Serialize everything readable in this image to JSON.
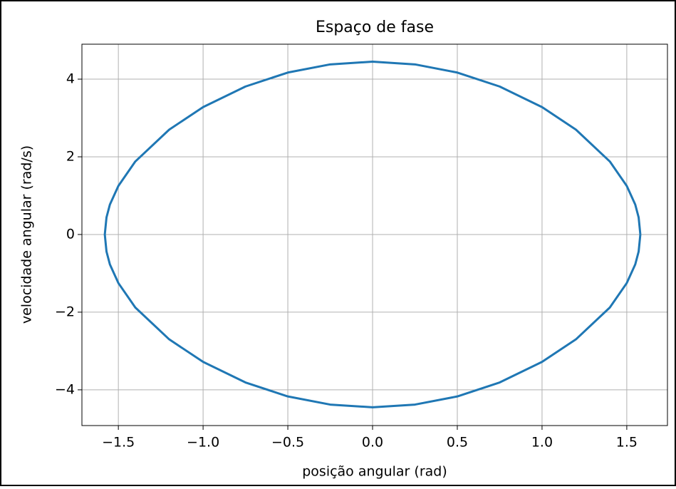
{
  "chart_data": {
    "type": "line",
    "title": "Espaço de fase",
    "xlabel": "posição angular (rad)",
    "ylabel": "velocidade angular (rad/s)",
    "series": [
      {
        "color": "#1f77b4",
        "x": [
          1.58,
          1.57,
          1.55,
          1.5,
          1.4,
          1.2,
          1.0,
          0.75,
          0.5,
          0.25,
          0,
          -0.25,
          -0.5,
          -0.75,
          -1.0,
          -1.2,
          -1.4,
          -1.5,
          -1.55,
          -1.57,
          -1.58,
          -1.57,
          -1.55,
          -1.5,
          -1.4,
          -1.2,
          -1.0,
          -0.75,
          -0.5,
          -0.25,
          0,
          0.25,
          0.5,
          0.75,
          1.0,
          1.2,
          1.4,
          1.5,
          1.55,
          1.57,
          1.58
        ],
        "values": [
          0,
          0.44,
          0.77,
          1.25,
          1.88,
          2.7,
          3.28,
          3.81,
          4.17,
          4.38,
          4.45,
          4.38,
          4.17,
          3.81,
          3.28,
          2.7,
          1.88,
          1.25,
          0.77,
          0.44,
          0,
          -0.44,
          -0.77,
          -1.25,
          -1.88,
          -2.7,
          -3.28,
          -3.81,
          -4.17,
          -4.38,
          -4.45,
          -4.38,
          -4.17,
          -3.81,
          -3.28,
          -2.7,
          -1.88,
          -1.25,
          -0.77,
          -0.44,
          0
        ]
      }
    ],
    "xlim": [
      -1.715,
      1.74
    ],
    "ylim": [
      -4.92,
      4.9
    ],
    "xticks": [
      {
        "value": -1.5,
        "label": "−1.5"
      },
      {
        "value": -1.0,
        "label": "−1.0"
      },
      {
        "value": -0.5,
        "label": "−0.5"
      },
      {
        "value": 0,
        "label": "0.0"
      },
      0.5,
      {
        "value": 1.0,
        "label": "1.0"
      },
      1.5
    ],
    "yticks": [
      {
        "value": -4,
        "label": "−4"
      },
      {
        "value": -2,
        "label": "−2"
      },
      0,
      2,
      4
    ],
    "grid": true
  }
}
